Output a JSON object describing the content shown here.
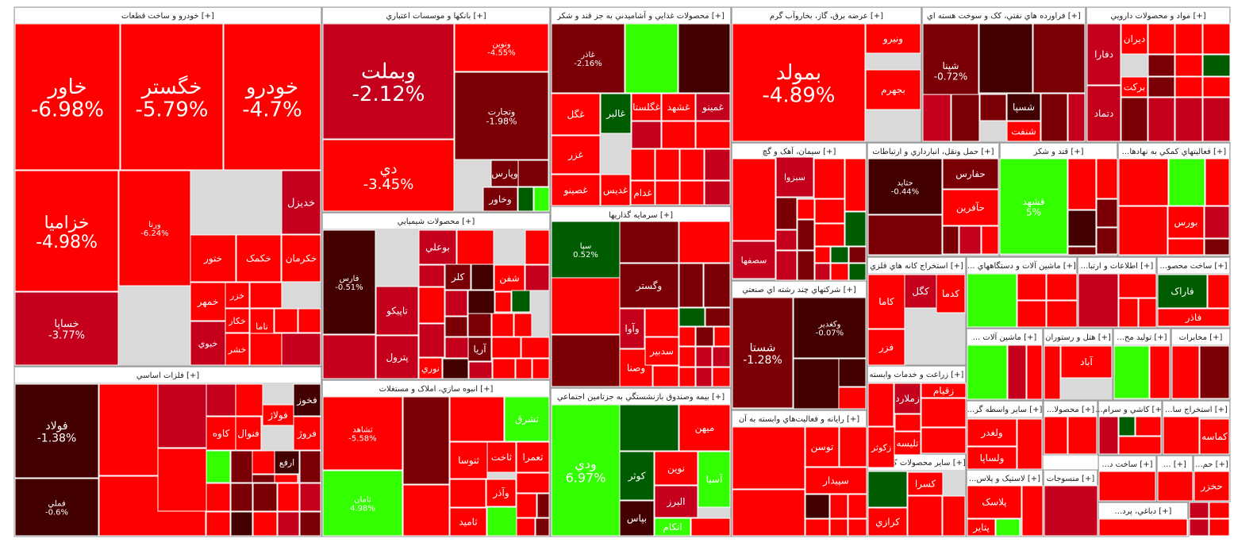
{
  "colors": {
    "neg_strong": "#ff0000",
    "neg_mid": "#c4001d",
    "neg_dark": "#7a0006",
    "neg_darkest": "#430000",
    "pos_light": "#33ff00",
    "pos_dark": "#005c00",
    "header_bg": "#ffffff",
    "header_text": "#222222"
  },
  "chart_data": {
    "type": "treemap",
    "sectors": [
      {
        "name": "خودرو و ساخت قطعات [+]"
      },
      {
        "name": "بانکها و موسسات اعتباري [+]"
      },
      {
        "name": "محصولات غذايي و آشاميدني به جز قند و شکر [+]"
      },
      {
        "name": "عرضه برق، گاز، بخاروآب گرم [+]"
      },
      {
        "name": "فراورده هاي نفتي، کک و سوخت هسته اي [+]"
      },
      {
        "name": "مواد و محصولات دارويي [+]"
      },
      {
        "name": "محصولات شيميايي [+]"
      },
      {
        "name": "سرمايه گذاريها [+]"
      },
      {
        "name": "سيمان، آهک و گچ [+]"
      },
      {
        "name": "حمل ونقل، انبارداري و ارتباطات [+]"
      },
      {
        "name": "قند و شکر [+]"
      },
      {
        "name": "...فعاليتهاي کمکي به نهادها [+]"
      },
      {
        "name": "فلزات اساسي [+]"
      },
      {
        "name": "انبوه سازي، املاک و مستغلات [+]"
      },
      {
        "name": "بيمه وصندوق بازنشستگي به جزتامين اجتماعي [+]"
      },
      {
        "name": "شرکتهاي چند رشته اي صنعتي [+]"
      },
      {
        "name": "استخراج کانه هاي فلزي [+]"
      },
      {
        "name": "... ماشين آلات و دستگاههاي [+]"
      },
      {
        "name": "...اطلاعات و ارتبا [+]"
      },
      {
        "name": "...ساخت محصو [+]"
      },
      {
        "name": "رايانه و فعاليت‌هاي وابسته به آن [+]"
      },
      {
        "name": "زراعت و خدمات وابسته [+]"
      },
      {
        "name": "... ماشين آلات [+]"
      },
      {
        "name": "هتل و رستوران [+]"
      },
      {
        "name": "...توليد مح [+]"
      },
      {
        "name": "مخابرات [+]"
      },
      {
        "name": "...ساير واسطه گر [+]"
      },
      {
        "name": "...محصولا [+]"
      },
      {
        "name": "...کاشي و سرام [+]"
      },
      {
        "name": "...استخراج سا [+]"
      },
      {
        "name": "...ساير محصولات کاني غ [+]"
      },
      {
        "name": "...لاستيک و پلاس [+]"
      },
      {
        "name": "منسوجات [+]"
      },
      {
        "name": "...ساخت د [+]"
      },
      {
        "name": "... [+]"
      },
      {
        "name": "...حم [+]"
      },
      {
        "name": "... [+]"
      },
      {
        "name": "...دباغي، پرد [+]"
      }
    ],
    "tiles": [
      {
        "symbol": "خاور",
        "change": "-6.98%"
      },
      {
        "symbol": "خگستر",
        "change": "-5.79%"
      },
      {
        "symbol": "خودرو",
        "change": "-4.7%"
      },
      {
        "symbol": "خزاميا",
        "change": "-4.98%"
      },
      {
        "symbol": "خساپا",
        "change": "-3.77%"
      },
      {
        "symbol": "ورنا",
        "change": "-6.24%"
      },
      {
        "symbol": "خديزل",
        "change": ""
      },
      {
        "symbol": "خکرمان",
        "change": ""
      },
      {
        "symbol": "خکمک",
        "change": ""
      },
      {
        "symbol": "ختور",
        "change": ""
      },
      {
        "symbol": "خمهر",
        "change": ""
      },
      {
        "symbol": "خزر",
        "change": ""
      },
      {
        "symbol": "خکار",
        "change": ""
      },
      {
        "symbol": "ناما",
        "change": ""
      },
      {
        "symbol": "خبوي",
        "change": ""
      },
      {
        "symbol": "خشر",
        "change": ""
      },
      {
        "symbol": "وبملت",
        "change": "-2.12%"
      },
      {
        "symbol": "دي",
        "change": "-3.45%"
      },
      {
        "symbol": "ونوين",
        "change": "-4.55%"
      },
      {
        "symbol": "وتجارت",
        "change": "-1.98%"
      },
      {
        "symbol": "وپارس",
        "change": ""
      },
      {
        "symbol": "وخاور",
        "change": ""
      },
      {
        "symbol": "غالبر",
        "change": ""
      },
      {
        "symbol": "غگل",
        "change": ""
      },
      {
        "symbol": "غزر",
        "change": ""
      },
      {
        "symbol": "غصينو",
        "change": ""
      },
      {
        "symbol": "غاذر",
        "change": "-2.16%"
      },
      {
        "symbol": "غگلستا",
        "change": ""
      },
      {
        "symbol": "غشهد",
        "change": ""
      },
      {
        "symbol": "غمينو",
        "change": ""
      },
      {
        "symbol": "غديس",
        "change": ""
      },
      {
        "symbol": "غدام",
        "change": ""
      },
      {
        "symbol": "بمولد",
        "change": "-4.89%"
      },
      {
        "symbol": "ونيرو",
        "change": ""
      },
      {
        "symbol": "بجهرم",
        "change": ""
      },
      {
        "symbol": "شپنا",
        "change": "-0.72%"
      },
      {
        "symbol": "شسپا",
        "change": ""
      },
      {
        "symbol": "شنفت",
        "change": ""
      },
      {
        "symbol": "دفارا",
        "change": ""
      },
      {
        "symbol": "ديران",
        "change": ""
      },
      {
        "symbol": "برکت",
        "change": ""
      },
      {
        "symbol": "دتماد",
        "change": ""
      },
      {
        "symbol": "فارس",
        "change": "-0.51%"
      },
      {
        "symbol": "تاپيکو",
        "change": ""
      },
      {
        "symbol": "پترول",
        "change": ""
      },
      {
        "symbol": "بوعلي",
        "change": ""
      },
      {
        "symbol": "شفن",
        "change": ""
      },
      {
        "symbol": "کلر",
        "change": ""
      },
      {
        "symbol": "نوري",
        "change": ""
      },
      {
        "symbol": "آريا",
        "change": ""
      },
      {
        "symbol": "وصنا",
        "change": ""
      },
      {
        "symbol": "وگستر",
        "change": ""
      },
      {
        "symbol": "وآوا",
        "change": ""
      },
      {
        "symbol": "سدبير",
        "change": ""
      },
      {
        "symbol": "سپا",
        "change": "0.52%"
      },
      {
        "symbol": "سصفها",
        "change": ""
      },
      {
        "symbol": "سبزوا",
        "change": ""
      },
      {
        "symbol": "حفارس",
        "change": ""
      },
      {
        "symbol": "حآفرين",
        "change": ""
      },
      {
        "symbol": "حتايد",
        "change": "-0.44%"
      },
      {
        "symbol": "قشهد",
        "change": "5%"
      },
      {
        "symbol": "بورس",
        "change": ""
      },
      {
        "symbol": "فولاد",
        "change": "-1.38%"
      },
      {
        "symbol": "فملي",
        "change": "-0.6%"
      },
      {
        "symbol": "فولاژ",
        "change": ""
      },
      {
        "symbol": "فخوز",
        "change": ""
      },
      {
        "symbol": "فروژ",
        "change": ""
      },
      {
        "symbol": "کاوه",
        "change": ""
      },
      {
        "symbol": "فنوال",
        "change": ""
      },
      {
        "symbol": "ارفع",
        "change": ""
      },
      {
        "symbol": "فجر",
        "change": ""
      },
      {
        "symbol": "ثشاهد",
        "change": "-5.58%"
      },
      {
        "symbol": "ثامان",
        "change": "4.98%"
      },
      {
        "symbol": "ثشرق",
        "change": ""
      },
      {
        "symbol": "ثنوسا",
        "change": ""
      },
      {
        "symbol": "ثاخت",
        "change": ""
      },
      {
        "symbol": "ثعمرا",
        "change": ""
      },
      {
        "symbol": "ثاميد",
        "change": ""
      },
      {
        "symbol": "وآذر",
        "change": ""
      },
      {
        "symbol": "ودي",
        "change": "6.97%"
      },
      {
        "symbol": "ميهن",
        "change": ""
      },
      {
        "symbol": "نوين",
        "change": ""
      },
      {
        "symbol": "آسيا",
        "change": ""
      },
      {
        "symbol": "کوثر",
        "change": ""
      },
      {
        "symbol": "البرز",
        "change": ""
      },
      {
        "symbol": "بپاس",
        "change": ""
      },
      {
        "symbol": "اتکام",
        "change": ""
      },
      {
        "symbol": "شستا",
        "change": "-1.28%"
      },
      {
        "symbol": "وکغدير",
        "change": "-0.07%"
      },
      {
        "symbol": "کاما",
        "change": ""
      },
      {
        "symbol": "کگل",
        "change": ""
      },
      {
        "symbol": "کدما",
        "change": ""
      },
      {
        "symbol": "فزر",
        "change": ""
      },
      {
        "symbol": "فاراک",
        "change": ""
      },
      {
        "symbol": "فاذر",
        "change": ""
      },
      {
        "symbol": "آباد",
        "change": ""
      },
      {
        "symbol": "توسن",
        "change": ""
      },
      {
        "symbol": "سپيدار",
        "change": ""
      },
      {
        "symbol": "زملارد",
        "change": ""
      },
      {
        "symbol": "زقيام",
        "change": ""
      },
      {
        "symbol": "زکوثر",
        "change": ""
      },
      {
        "symbol": "تليسه",
        "change": ""
      },
      {
        "symbol": "ولغدر",
        "change": ""
      },
      {
        "symbol": "ولساپا",
        "change": ""
      },
      {
        "symbol": "کماسه",
        "change": ""
      },
      {
        "symbol": "کسرا",
        "change": ""
      },
      {
        "symbol": "کرازي",
        "change": ""
      },
      {
        "symbol": "پلاسک",
        "change": ""
      },
      {
        "symbol": "پتاير",
        "change": ""
      },
      {
        "symbol": "حخزر",
        "change": ""
      }
    ]
  }
}
